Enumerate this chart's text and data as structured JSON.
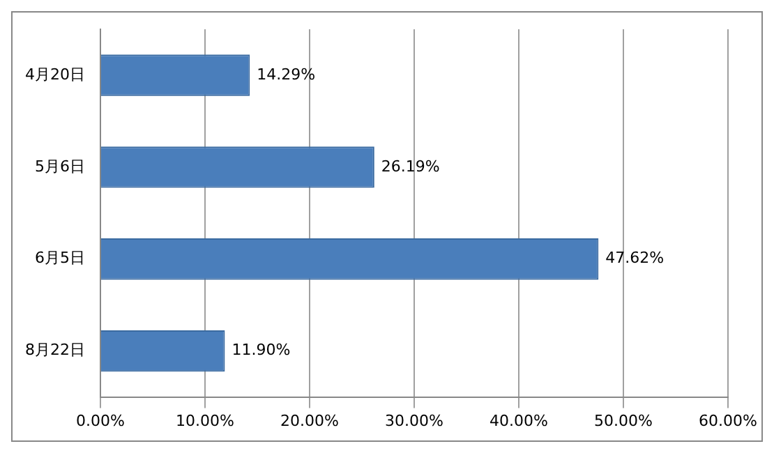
{
  "chart_data": {
    "type": "bar",
    "orientation": "horizontal",
    "categories": [
      "4月20日",
      "5月6日",
      "6月5日",
      "8月22日"
    ],
    "values": [
      14.29,
      26.19,
      47.62,
      11.9
    ],
    "color": "#4a7ebb",
    "value_labels": [
      "14.29%",
      "26.19%",
      "47.62%",
      "11.90%"
    ],
    "xlim": [
      0,
      60
    ],
    "xticks": [
      {
        "value": 0,
        "label": "0.00%"
      },
      {
        "value": 10,
        "label": "10.00%"
      },
      {
        "value": 20,
        "label": "20.00%"
      },
      {
        "value": 30,
        "label": "30.00%"
      },
      {
        "value": 40,
        "label": "40.00%"
      },
      {
        "value": 50,
        "label": "50.00%"
      },
      {
        "value": 60,
        "label": "60.00%"
      }
    ],
    "grid": "x",
    "legend": false
  }
}
